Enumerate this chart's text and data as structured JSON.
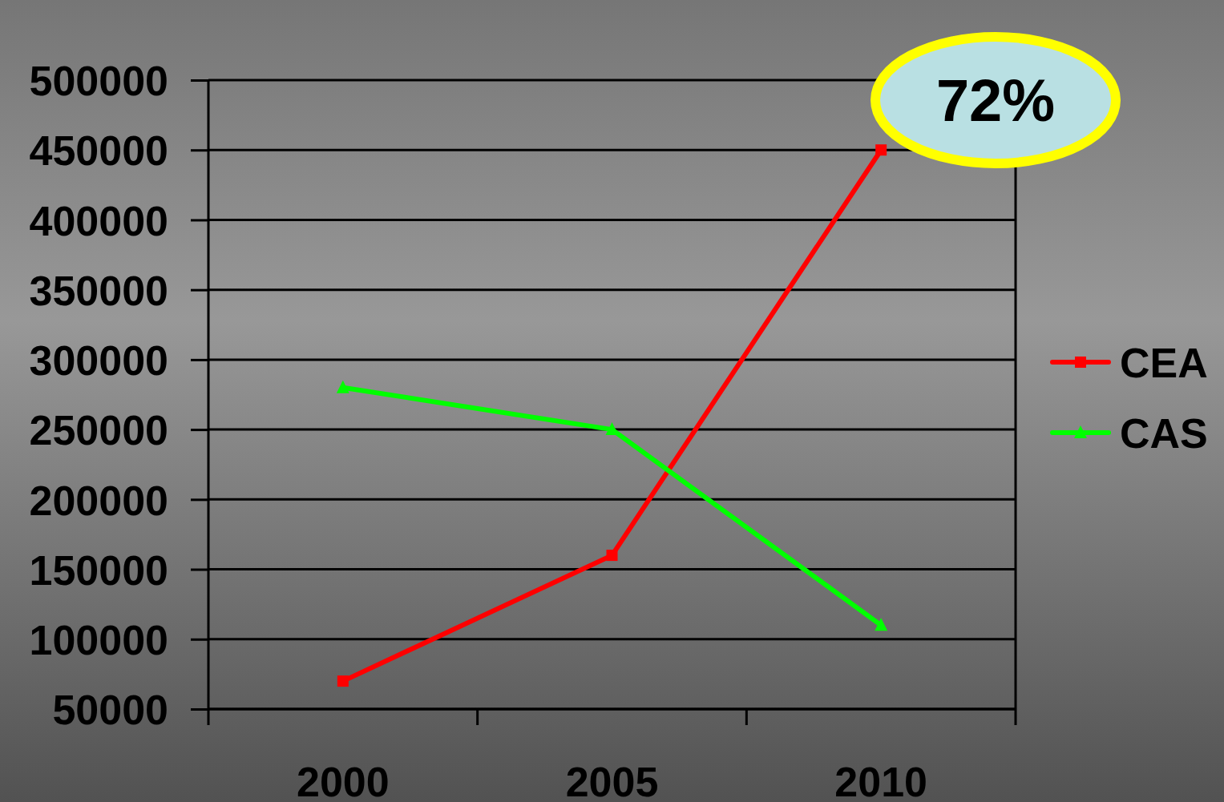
{
  "chart_data": {
    "type": "line",
    "categories": [
      "2000",
      "2005",
      "2010"
    ],
    "series": [
      {
        "name": "CEA",
        "color": "#ff0000",
        "marker": "square",
        "values": [
          70000,
          160000,
          450000
        ]
      },
      {
        "name": "CAS",
        "color": "#00ff00",
        "marker": "triangle",
        "values": [
          280000,
          250000,
          110000
        ]
      }
    ],
    "ylim": [
      50000,
      500000
    ],
    "yticks": [
      50000,
      100000,
      150000,
      200000,
      250000,
      300000,
      350000,
      400000,
      450000,
      500000
    ],
    "grid": "y",
    "legend": "right",
    "line_style": "solid",
    "annotations": [
      "72%"
    ]
  }
}
